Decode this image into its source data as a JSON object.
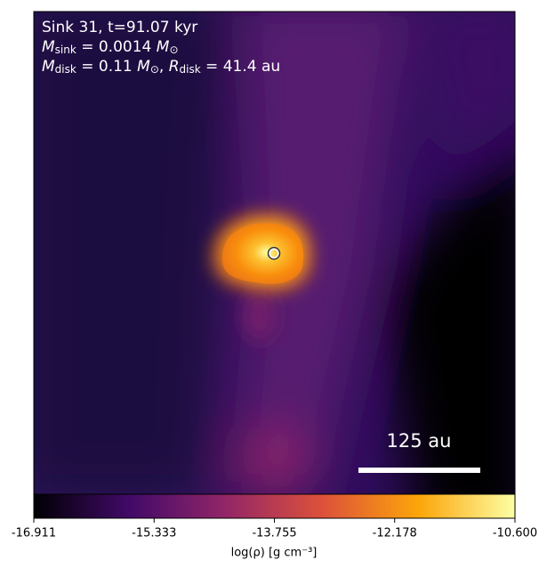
{
  "chart_data": {
    "type": "image",
    "annotations": [
      [
        {
          "text": "Sink 31, t=91.07 kyr"
        }
      ],
      [
        {
          "text": "M"
        },
        {
          "text": "sink",
          "sub": true
        },
        {
          "text": " = 0.0014 "
        },
        {
          "text": "M"
        },
        {
          "text": "⊙",
          "sub": true
        }
      ],
      [
        {
          "text": "M"
        },
        {
          "text": "disk",
          "sub": true
        },
        {
          "text": " = 0.11 "
        },
        {
          "text": "M"
        },
        {
          "text": "⊙",
          "sub": true
        },
        {
          "text": ", "
        },
        {
          "text": "R"
        },
        {
          "text": "disk",
          "sub": true
        },
        {
          "text": " = 41.4 au"
        }
      ]
    ],
    "scale_bar": "125 au",
    "colorbar": {
      "label": "log(ρ) [g cm⁻³]",
      "clim": [
        -16.911,
        -10.6
      ],
      "ticks": [
        -16.911,
        -15.333,
        -13.755,
        -12.178,
        {
          "value": -10.6,
          "label": "-10.600"
        }
      ],
      "colormap": [
        "#000004",
        "#420a68",
        "#932667",
        "#dd513a",
        "#fca50a",
        "#fcffa4"
      ]
    }
  }
}
